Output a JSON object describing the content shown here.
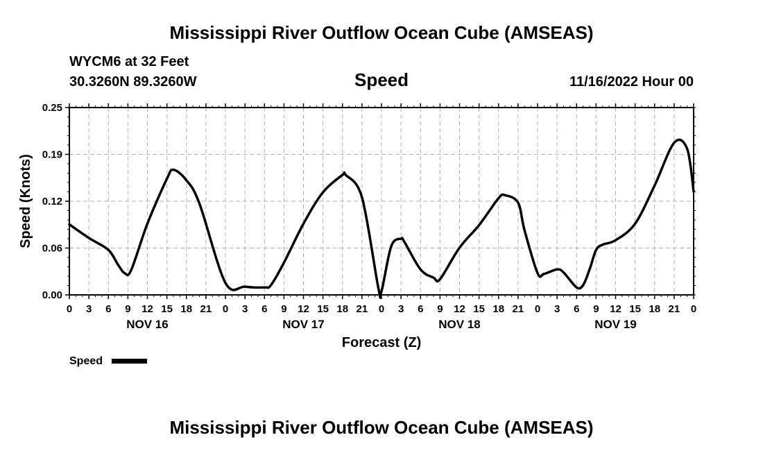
{
  "header": {
    "title": "Mississippi River Outflow Ocean Cube (AMSEAS)",
    "station": "WYCM6 at 32 Feet",
    "coords": "30.3260N  89.3260W",
    "timestamp": "11/16/2022 Hour 00"
  },
  "footer": {
    "title": "Mississippi River Outflow Ocean Cube (AMSEAS)"
  },
  "chart_data": {
    "type": "line",
    "title": "Speed",
    "xlabel": "Forecast (Z)",
    "ylabel": "Speed (Knots)",
    "ylim": [
      0,
      0.25
    ],
    "xlim": [
      0,
      96
    ],
    "grid": true,
    "y_ticks": [
      {
        "value": 0,
        "label": "0.00"
      },
      {
        "value": 0.0625,
        "label": "0.06"
      },
      {
        "value": 0.125,
        "label": "0.12"
      },
      {
        "value": 0.1875,
        "label": "0.19"
      },
      {
        "value": 0.25,
        "label": "0.25"
      }
    ],
    "x_ticks": [
      {
        "hour": 0,
        "label": "0"
      },
      {
        "hour": 3,
        "label": "3"
      },
      {
        "hour": 6,
        "label": "6"
      },
      {
        "hour": 9,
        "label": "9"
      },
      {
        "hour": 12,
        "label": "12"
      },
      {
        "hour": 15,
        "label": "15"
      },
      {
        "hour": 18,
        "label": "18"
      },
      {
        "hour": 21,
        "label": "21"
      },
      {
        "hour": 24,
        "label": "0"
      },
      {
        "hour": 27,
        "label": "3"
      },
      {
        "hour": 30,
        "label": "6"
      },
      {
        "hour": 33,
        "label": "9"
      },
      {
        "hour": 36,
        "label": "12"
      },
      {
        "hour": 39,
        "label": "15"
      },
      {
        "hour": 42,
        "label": "18"
      },
      {
        "hour": 45,
        "label": "21"
      },
      {
        "hour": 48,
        "label": "0"
      },
      {
        "hour": 51,
        "label": "3"
      },
      {
        "hour": 54,
        "label": "6"
      },
      {
        "hour": 57,
        "label": "9"
      },
      {
        "hour": 60,
        "label": "12"
      },
      {
        "hour": 63,
        "label": "15"
      },
      {
        "hour": 66,
        "label": "18"
      },
      {
        "hour": 69,
        "label": "21"
      },
      {
        "hour": 72,
        "label": "0"
      },
      {
        "hour": 75,
        "label": "3"
      },
      {
        "hour": 78,
        "label": "6"
      },
      {
        "hour": 81,
        "label": "9"
      },
      {
        "hour": 84,
        "label": "12"
      },
      {
        "hour": 87,
        "label": "15"
      },
      {
        "hour": 90,
        "label": "18"
      },
      {
        "hour": 93,
        "label": "21"
      },
      {
        "hour": 96,
        "label": "0"
      }
    ],
    "date_labels": [
      {
        "hour": 12,
        "label": "NOV 16"
      },
      {
        "hour": 36,
        "label": "NOV 17"
      },
      {
        "hour": 60,
        "label": "NOV 18"
      },
      {
        "hour": 84,
        "label": "NOV 19"
      }
    ],
    "series": [
      {
        "name": "Speed",
        "color": "#000000",
        "x": [
          0,
          3,
          6,
          7.5,
          8.5,
          9.5,
          12,
          15,
          16,
          18,
          20,
          24,
          27,
          30,
          31,
          33,
          36,
          39,
          42,
          42.5,
          45,
          47.5,
          48,
          49.5,
          51,
          51.5,
          54,
          56,
          57,
          60,
          63,
          66,
          67,
          69,
          70,
          72,
          73,
          75,
          76,
          78,
          79,
          80,
          81,
          82,
          84,
          87,
          90,
          93,
          95,
          96
        ],
        "values": [
          0.094,
          0.076,
          0.06,
          0.04,
          0.029,
          0.033,
          0.095,
          0.155,
          0.167,
          0.153,
          0.122,
          0.016,
          0.011,
          0.01,
          0.013,
          0.043,
          0.095,
          0.137,
          0.16,
          0.16,
          0.13,
          0.01,
          0.005,
          0.065,
          0.075,
          0.071,
          0.034,
          0.023,
          0.021,
          0.063,
          0.093,
          0.129,
          0.133,
          0.123,
          0.086,
          0.029,
          0.028,
          0.034,
          0.03,
          0.01,
          0.013,
          0.034,
          0.06,
          0.067,
          0.073,
          0.095,
          0.146,
          0.203,
          0.195,
          0.138
        ]
      }
    ],
    "legend": {
      "label": "Speed",
      "placement": "bottom-left"
    }
  }
}
